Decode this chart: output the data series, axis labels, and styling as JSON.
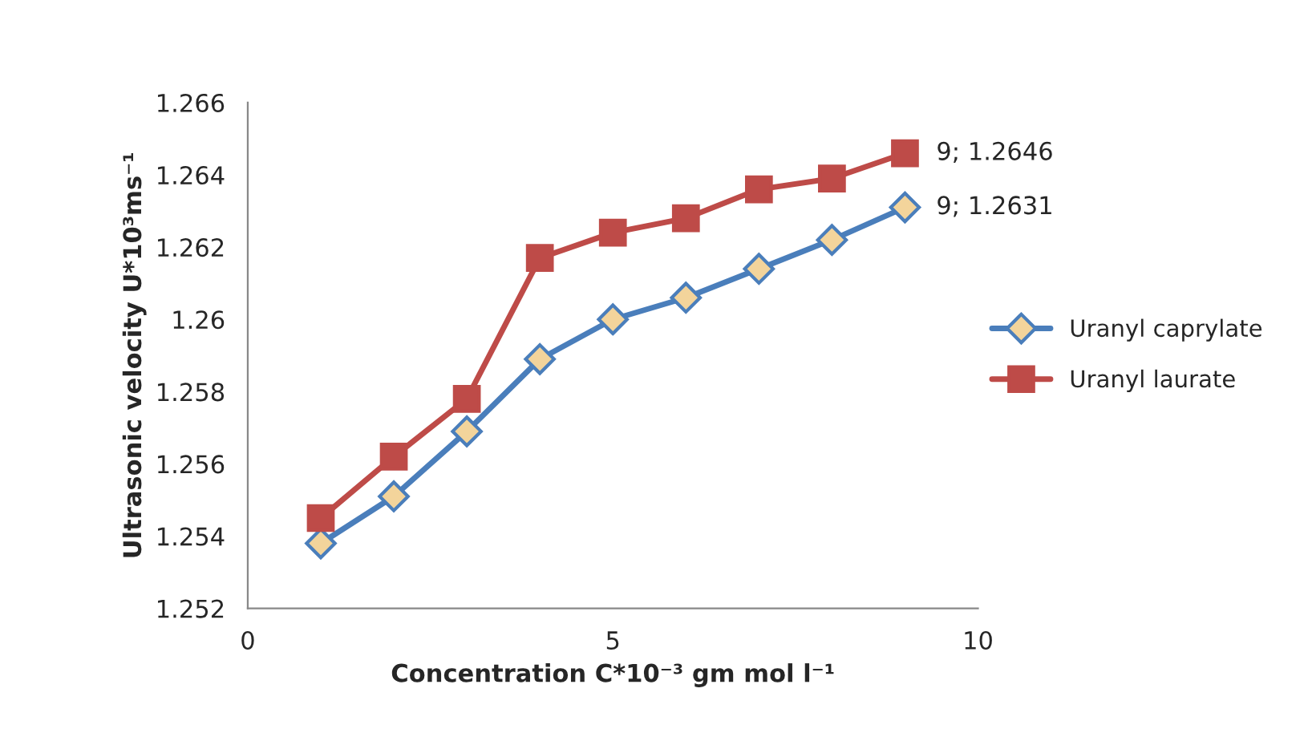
{
  "chart_data": {
    "type": "line",
    "xlabel": "Concentration C*10⁻³ gm mol l⁻¹",
    "ylabel": "Ultrasonic velocity U*10³ms⁻¹",
    "x": [
      1,
      2,
      3,
      4,
      5,
      6,
      7,
      8,
      9
    ],
    "series": [
      {
        "name": "Uranyl caprylate",
        "color": "#4a7ebb",
        "marker": "diamond",
        "values": [
          1.2538,
          1.2551,
          1.2569,
          1.2589,
          1.26,
          1.2606,
          1.2614,
          1.2622,
          1.2631
        ],
        "value_labels": [
          null,
          null,
          null,
          null,
          null,
          null,
          null,
          null,
          "9; 1.2631"
        ]
      },
      {
        "name": "Uranyl laurate",
        "color": "#be4b48",
        "marker": "square",
        "values": [
          1.2545,
          1.2562,
          1.2578,
          1.2617,
          1.2624,
          1.2628,
          1.2636,
          1.2639,
          1.2646
        ],
        "value_labels": [
          null,
          null,
          null,
          null,
          null,
          null,
          null,
          null,
          "9; 1.2646"
        ]
      }
    ],
    "xlim": [
      0,
      10
    ],
    "xticks": [
      0,
      5,
      10
    ],
    "ylim": [
      1.252,
      1.266
    ],
    "yticks": [
      {
        "value": 1.252,
        "label": "1.252"
      },
      {
        "value": 1.254,
        "label": "1.254"
      },
      {
        "value": 1.256,
        "label": "1.256"
      },
      {
        "value": 1.258,
        "label": "1.258"
      },
      {
        "value": 1.26,
        "label": "1.26"
      },
      {
        "value": 1.262,
        "label": "1.262"
      },
      {
        "value": 1.264,
        "label": "1.264"
      },
      {
        "value": 1.266,
        "label": "1.266"
      }
    ],
    "grid": false,
    "legend": "right"
  }
}
